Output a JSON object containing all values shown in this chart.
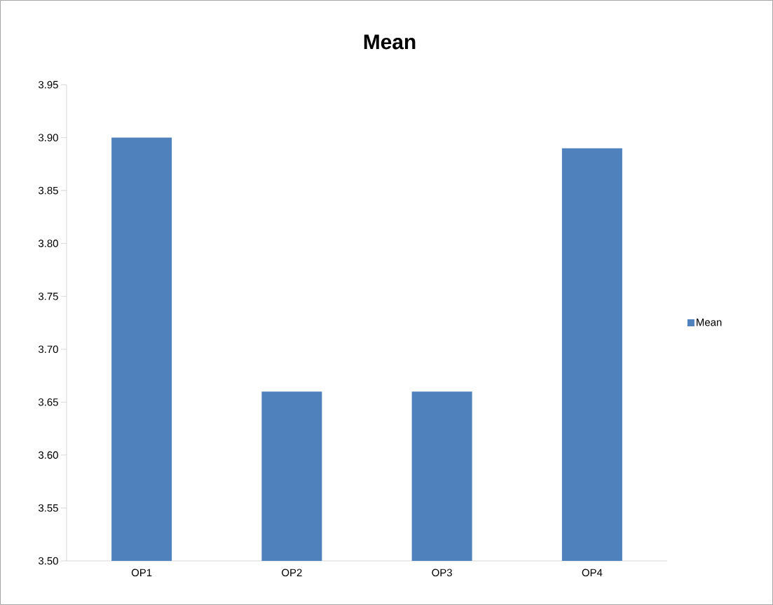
{
  "chart_data": {
    "type": "bar",
    "title": "Mean",
    "categories": [
      "OP1",
      "OP2",
      "OP3",
      "OP4"
    ],
    "series": [
      {
        "name": "Mean",
        "color": "#4f81bd",
        "values": [
          3.9,
          3.66,
          3.66,
          3.89
        ]
      }
    ],
    "ylim": [
      3.5,
      3.95
    ],
    "yticks": [
      {
        "value": 3.5,
        "label": "3.50"
      },
      {
        "value": 3.55,
        "label": "3.55"
      },
      {
        "value": 3.6,
        "label": "3.60"
      },
      {
        "value": 3.65,
        "label": "3.65"
      },
      {
        "value": 3.7,
        "label": "3.70"
      },
      {
        "value": 3.75,
        "label": "3.75"
      },
      {
        "value": 3.8,
        "label": "3.80"
      },
      {
        "value": 3.85,
        "label": "3.85"
      },
      {
        "value": 3.9,
        "label": "3.90"
      },
      {
        "value": 3.95,
        "label": "3.95"
      }
    ],
    "legend": "right",
    "grid": false
  }
}
